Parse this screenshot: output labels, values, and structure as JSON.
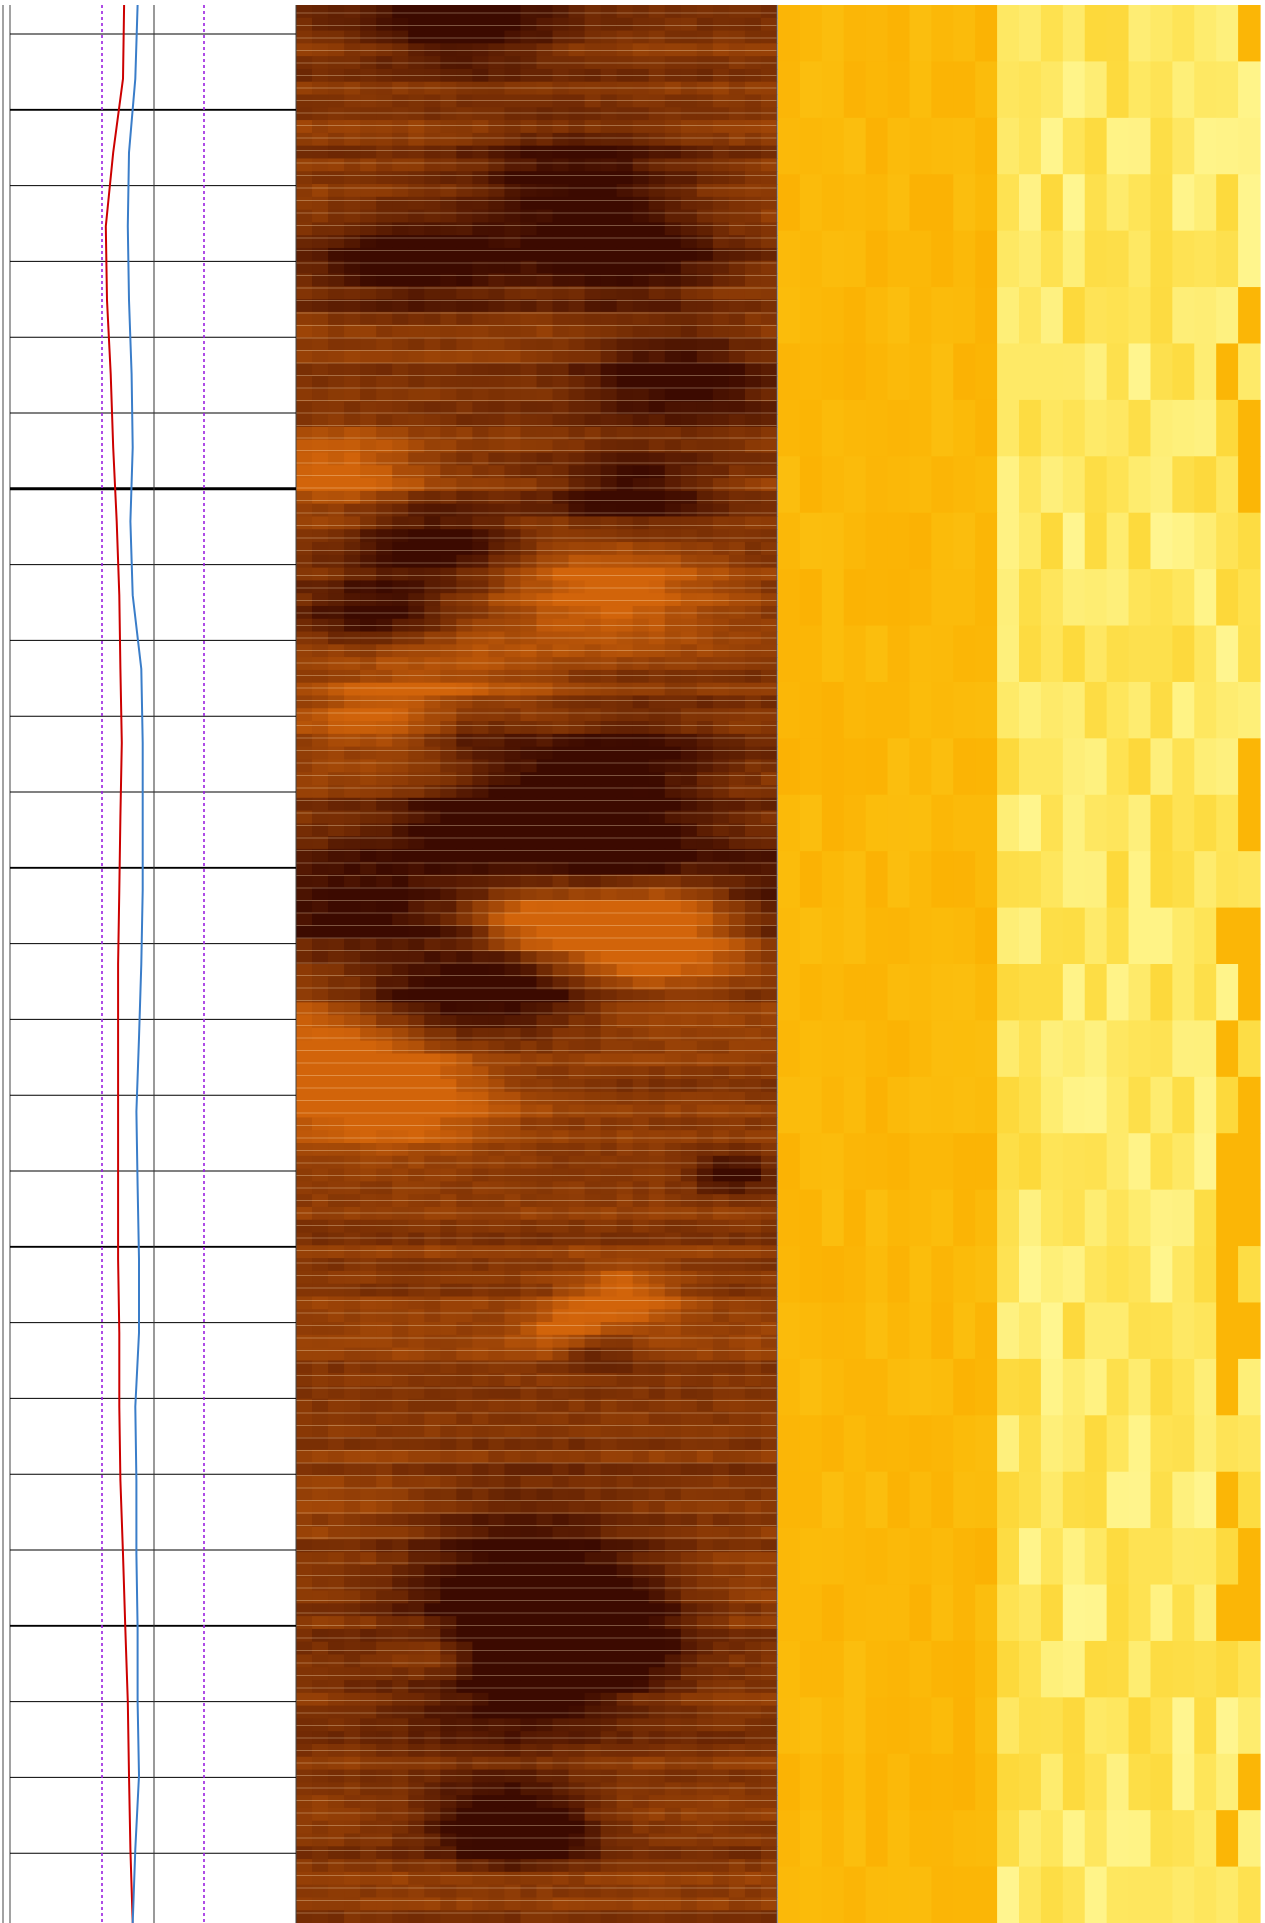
{
  "chart_data": {
    "type": "line",
    "orientation": "vertical",
    "series": [
      {
        "color": "#cc0000",
        "values": [
          39.9,
          39.5,
          36.1,
          33.5,
          33.9,
          35.2,
          36.1,
          37.3,
          38.2,
          38.6,
          39.1,
          38.6,
          38.2,
          37.8,
          37.8,
          37.8,
          37.8,
          37.8,
          38.2,
          38.2,
          38.6,
          39.5,
          40.3,
          41.2,
          41.6,
          42.1,
          42.9
        ]
      },
      {
        "color": "#3a7dc9",
        "values": [
          44.6,
          43.8,
          41.6,
          41.2,
          41.6,
          42.5,
          42.9,
          42.1,
          42.9,
          45.9,
          46.4,
          46.4,
          46.4,
          45.9,
          45.1,
          44.2,
          44.6,
          45.1,
          45.1,
          43.8,
          44.2,
          44.2,
          44.6,
          44.6,
          45.1,
          43.8,
          42.9
        ]
      }
    ]
  }
}
